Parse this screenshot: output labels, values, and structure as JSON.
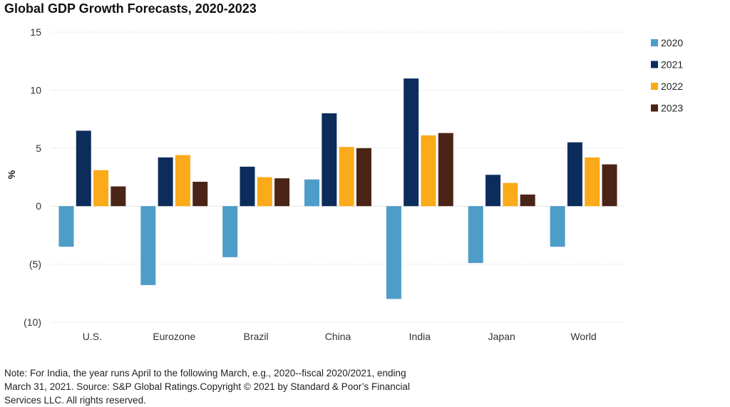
{
  "chart_data": {
    "type": "bar",
    "title": "Global GDP Growth Forecasts, 2020-2023",
    "ylabel": "%",
    "xlabel": "",
    "ylim": [
      -10,
      15
    ],
    "yticks": [
      15,
      10,
      5,
      0,
      -5,
      -10
    ],
    "ytick_labels": [
      "15",
      "10",
      "5",
      "0",
      "(5)",
      "(10)"
    ],
    "grid": true,
    "legend_position": "right",
    "categories": [
      "U.S.",
      "Eurozone",
      "Brazil",
      "China",
      "India",
      "Japan",
      "World"
    ],
    "series": [
      {
        "name": "2020",
        "color": "#4e9cc8",
        "values": [
          -3.5,
          -6.8,
          -4.4,
          2.3,
          -8.0,
          -4.9,
          -3.5
        ]
      },
      {
        "name": "2021",
        "color": "#0c2d5c",
        "values": [
          6.5,
          4.2,
          3.4,
          8.0,
          11.0,
          2.7,
          5.5
        ]
      },
      {
        "name": "2022",
        "color": "#fbaa19",
        "values": [
          3.1,
          4.4,
          2.5,
          5.1,
          6.1,
          2.0,
          4.2
        ]
      },
      {
        "name": "2023",
        "color": "#4b2418",
        "values": [
          1.7,
          2.1,
          2.4,
          5.0,
          6.3,
          1.0,
          3.6
        ]
      }
    ]
  },
  "footnote": "Note: For India, the year runs April to the following March, e.g., 2020--fiscal 2020/2021, ending March 31, 2021. Source: S&P Global Ratings.Copyright © 2021 by Standard & Poor’s Financial Services LLC. All rights reserved."
}
